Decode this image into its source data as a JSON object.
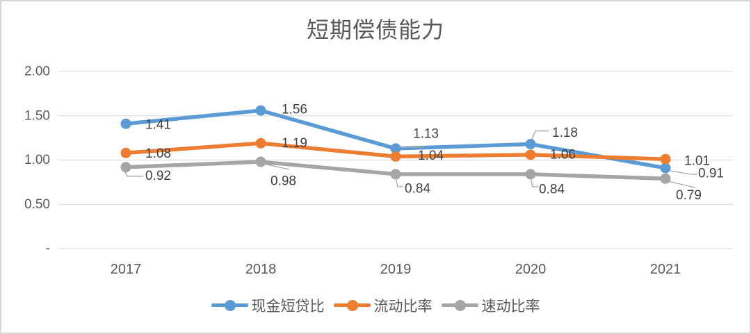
{
  "chart_data": {
    "type": "line",
    "title": "短期偿债能力",
    "categories": [
      "2017",
      "2018",
      "2019",
      "2020",
      "2021"
    ],
    "series": [
      {
        "name": "现金短贷比",
        "color": "#5B9BD5",
        "values": [
          1.41,
          1.56,
          1.13,
          1.18,
          0.91
        ]
      },
      {
        "name": "流动比率",
        "color": "#ED7D31",
        "values": [
          1.08,
          1.19,
          1.04,
          1.06,
          1.01
        ]
      },
      {
        "name": "速动比率",
        "color": "#A5A5A5",
        "values": [
          0.92,
          0.98,
          0.84,
          0.84,
          0.79
        ]
      }
    ],
    "y_axis": {
      "ticks": [
        "2.00",
        "1.50",
        "1.00",
        "0.50",
        "-"
      ],
      "tick_values": [
        2.0,
        1.5,
        1.0,
        0.5,
        0
      ],
      "ylim": [
        0,
        2
      ]
    },
    "grid": true,
    "legend_position": "bottom",
    "data_label_decimals": 2
  },
  "colors": {
    "grid": "#D9D9D9",
    "axis_text": "#595959",
    "data_label": "#404040",
    "title": "#595959",
    "leader": "#A6A6A6",
    "border": "#D6D6D6"
  }
}
